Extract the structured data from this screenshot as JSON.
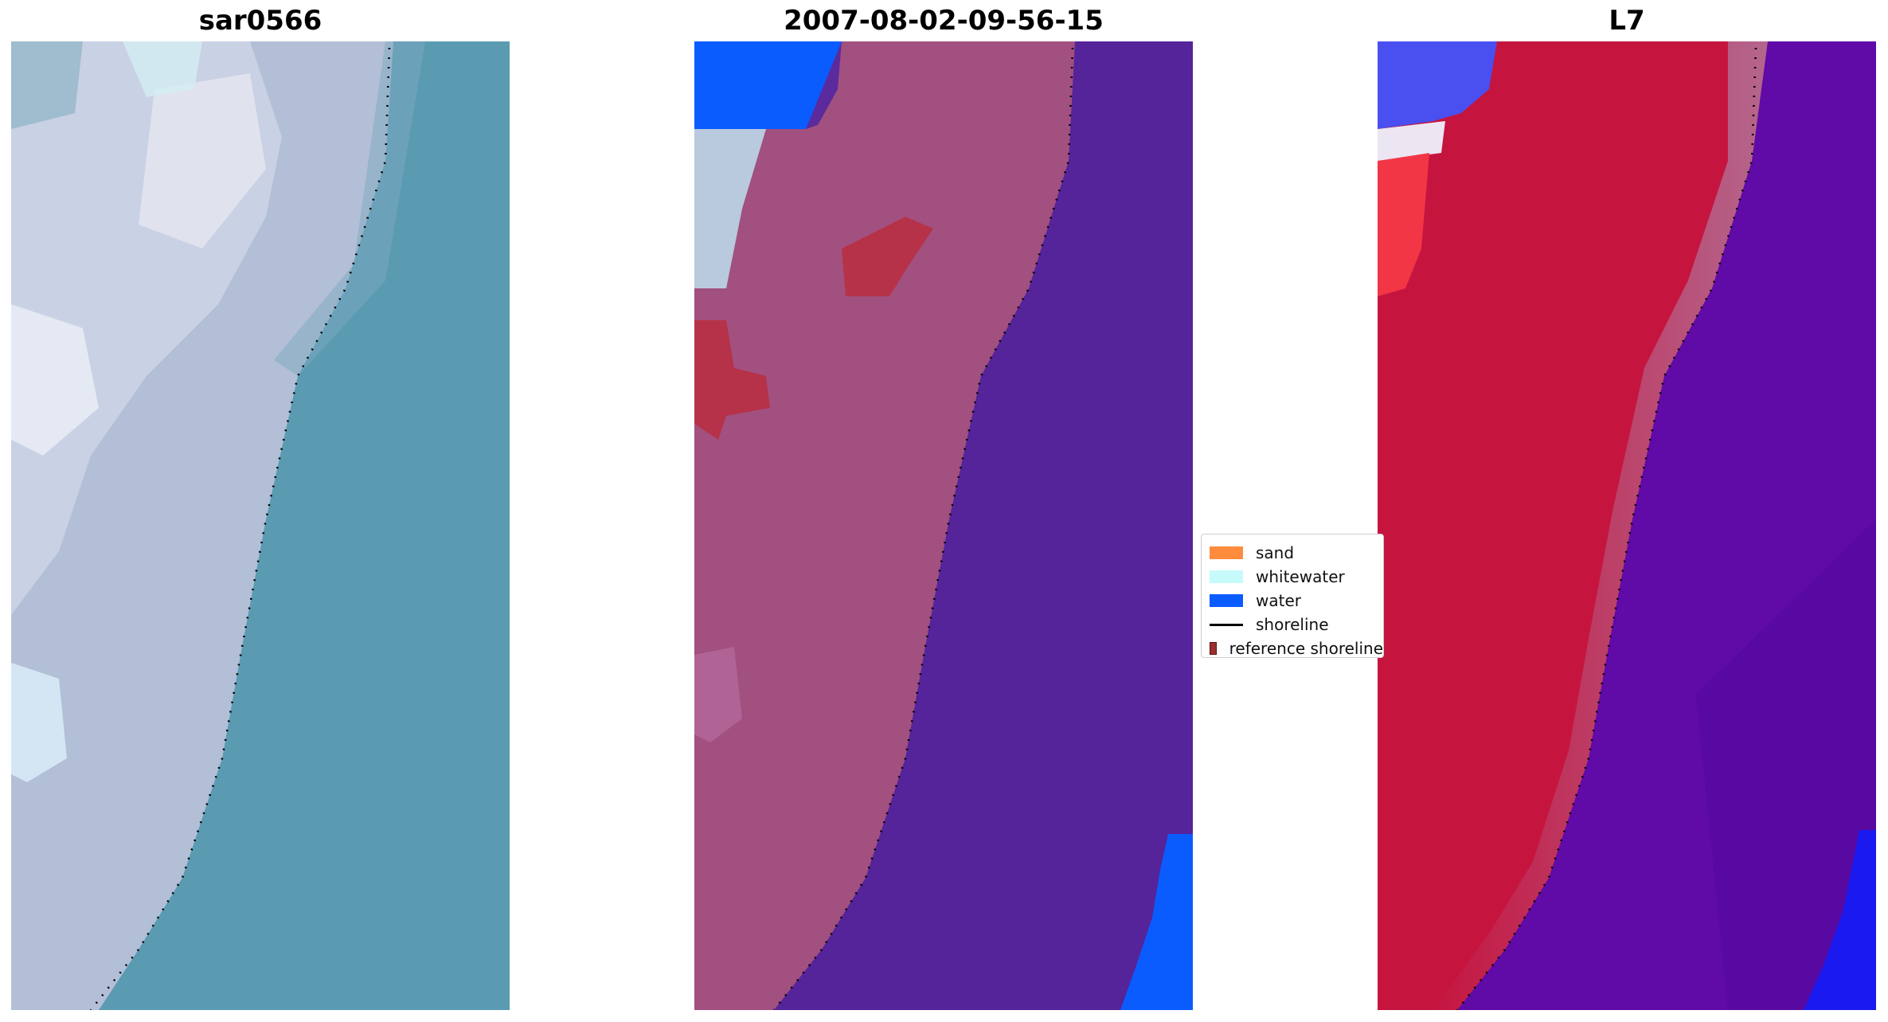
{
  "panels": [
    {
      "id": "rgb",
      "title": "sar0566"
    },
    {
      "id": "classified",
      "title": "2007-08-02-09-56-15"
    },
    {
      "id": "index",
      "title": "L7"
    }
  ],
  "legend": {
    "items": [
      {
        "label": "sand",
        "color": "#ff8c3d",
        "kind": "patch"
      },
      {
        "label": "whitewater",
        "color": "#c7fbfb",
        "kind": "patch"
      },
      {
        "label": "water",
        "color": "#0a5cff",
        "kind": "patch"
      },
      {
        "label": "shoreline",
        "color": "#000000",
        "kind": "line"
      },
      {
        "label": "reference shoreline",
        "color": "#9b2f2f",
        "kind": "patch"
      }
    ]
  },
  "colors": {
    "sea_rgb": "#5b9bb2",
    "land_rgb": "#b6c3d8",
    "land_classified": "#a2507f",
    "sea_classified": "#55239a",
    "index_land": "#c5153f",
    "index_sea": "#600aa8",
    "shoreline": "#000000"
  }
}
